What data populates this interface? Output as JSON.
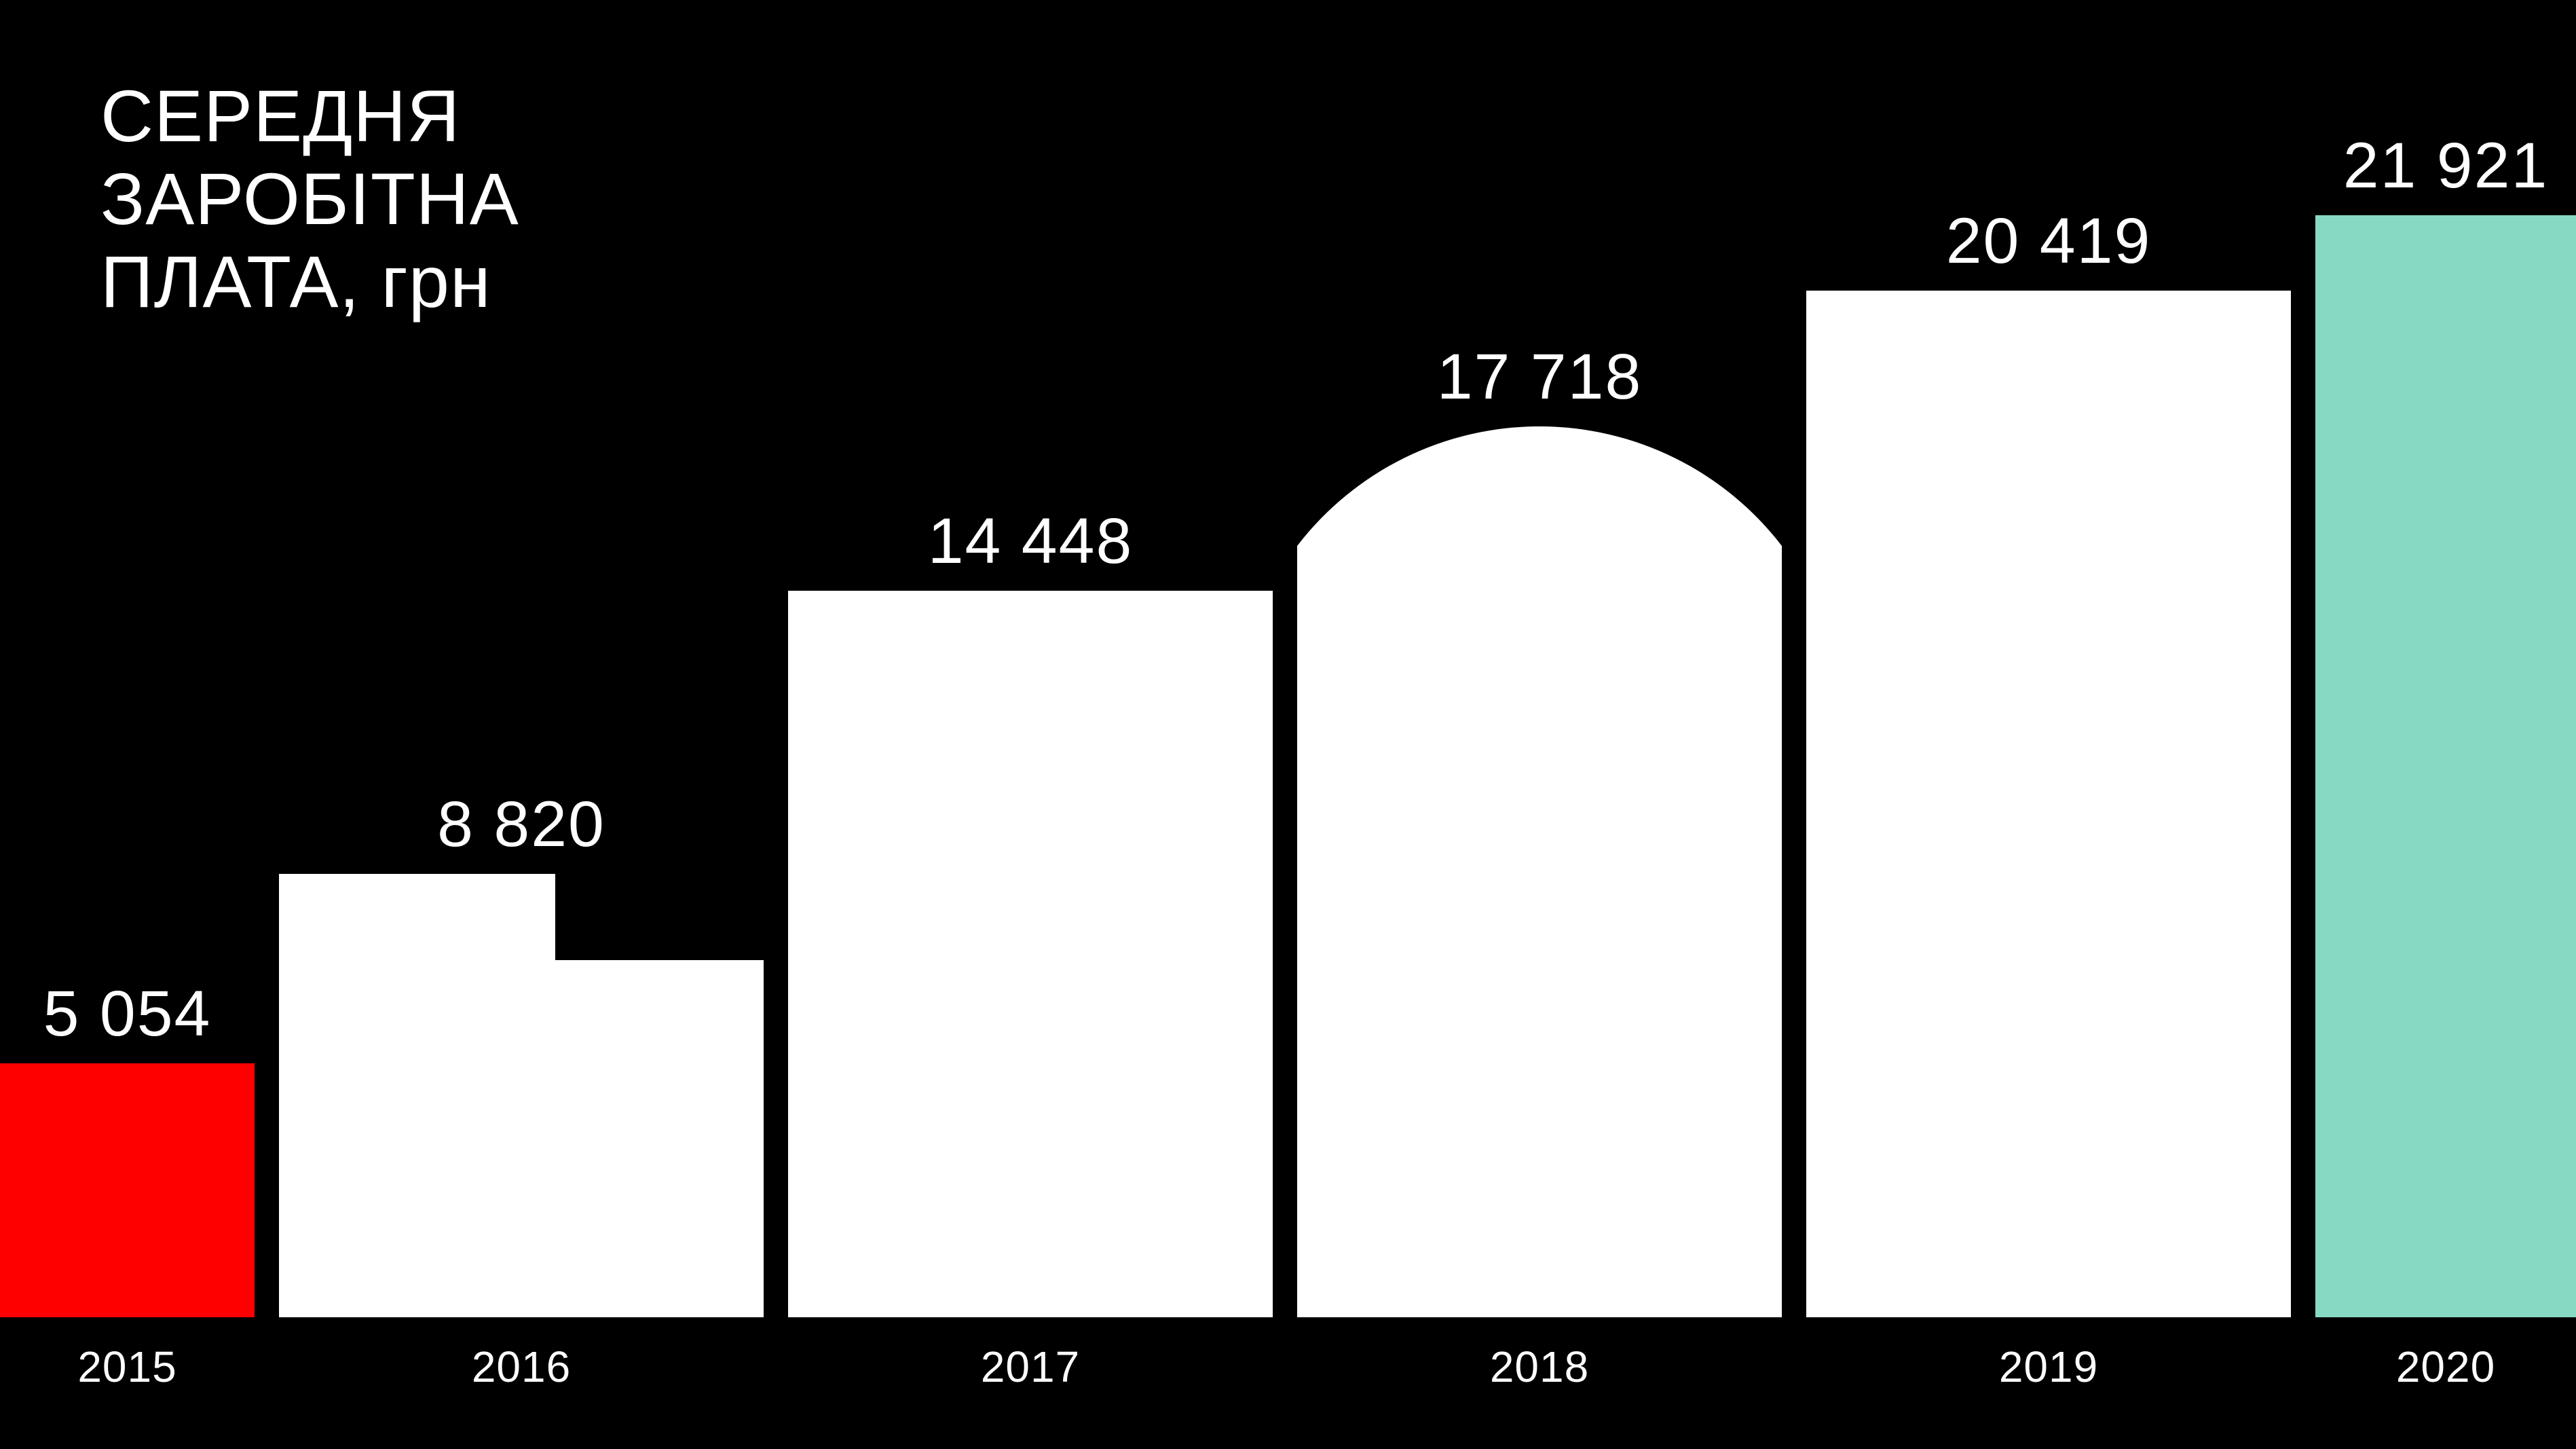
{
  "title": {
    "lines": [
      "СЕРЕДНЯ",
      "ЗАРОБІТНА",
      "ПЛАТА, грн"
    ],
    "full_text": "СЕРЕДНЯ ЗАРОБІТНА ПЛАТА, грн"
  },
  "colors": {
    "background": "#000000",
    "text": "#FFFFFF",
    "bar_default": "#FFFFFF",
    "bar_first": "#FE0000",
    "bar_last": "#88D9C4"
  },
  "chart_data": {
    "type": "bar",
    "title": "СЕРЕДНЯ ЗАРОБІТНА ПЛАТА, грн",
    "unit": "грн",
    "categories": [
      "2015",
      "2016",
      "2017",
      "2018",
      "2019",
      "2020"
    ],
    "values": [
      5054,
      8820,
      14448,
      17718,
      20419,
      21921
    ],
    "value_labels": [
      "5 054",
      "8 820",
      "14 448",
      "17 718",
      "20 419",
      "21 921"
    ],
    "bar_colors": [
      "#FE0000",
      "#FFFFFF",
      "#FFFFFF",
      "#FFFFFF",
      "#FFFFFF",
      "#88D9C4"
    ],
    "bar_shapes": [
      "rect",
      "stepped",
      "rect",
      "dome",
      "rect",
      "rect"
    ],
    "stepped_bar": {
      "category": "2016",
      "step_estimated_value": 7100,
      "step_split_fraction": 0.57
    },
    "dome_bar": {
      "category": "2018",
      "note": "top is a circular arc segment"
    },
    "ylim": [
      0,
      22500
    ],
    "xlabel": "",
    "ylabel": "",
    "legend": "none",
    "gridlines": false,
    "y_axis_visible": false,
    "value_labels_above_bars": true,
    "edge_crop_note": "first bar cropped at left edge, last bar cropped at right edge"
  }
}
